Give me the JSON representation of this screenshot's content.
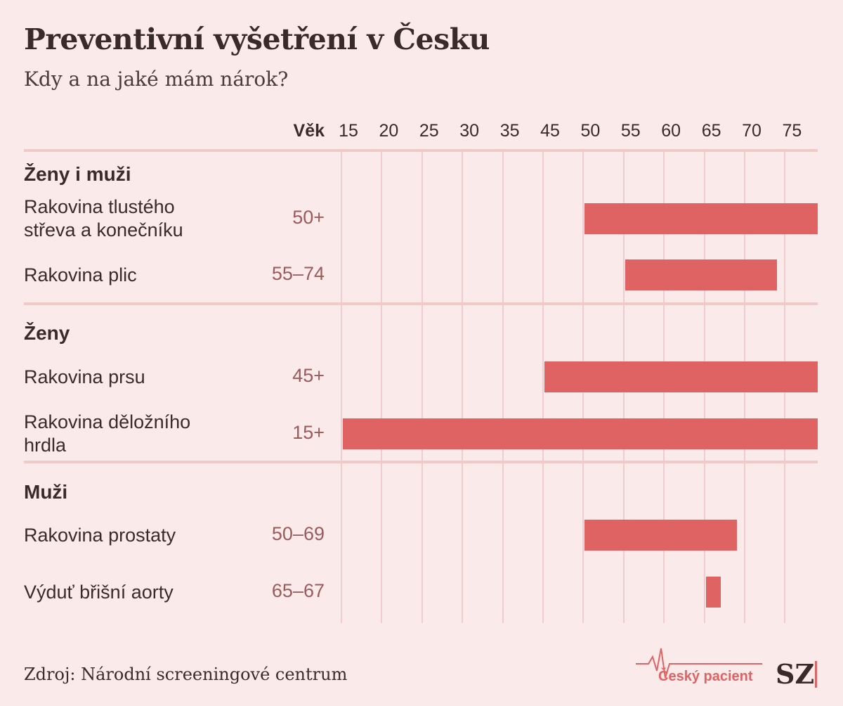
{
  "header": {
    "title": "Preventivní vyšetření v Česku",
    "subtitle": "Kdy a na jaké mám nárok?"
  },
  "chart_data": {
    "type": "bar",
    "orientation": "horizontal",
    "axis_title": "Věk",
    "ticks": [
      15,
      20,
      25,
      30,
      35,
      45,
      50,
      55,
      60,
      65,
      70,
      75
    ],
    "x_max": 79.5,
    "grid": true,
    "groups": [
      {
        "name": "Ženy i muži",
        "rows": [
          {
            "label_lines": [
              "Rakovina tlustého",
              "střeva a konečníku"
            ],
            "range_label": "50+",
            "start": 50,
            "end": null
          },
          {
            "label_lines": [
              "Rakovina plic"
            ],
            "range_label": "55–74",
            "start": 55,
            "end": 74
          }
        ]
      },
      {
        "name": "Ženy",
        "rows": [
          {
            "label_lines": [
              "Rakovina prsu"
            ],
            "range_label": "45+",
            "start": 45,
            "end": null
          },
          {
            "label_lines": [
              "Rakovina děložního",
              "hrdla"
            ],
            "range_label": "15+",
            "start": 15,
            "end": null
          }
        ]
      },
      {
        "name": "Muži",
        "rows": [
          {
            "label_lines": [
              "Rakovina prostaty"
            ],
            "range_label": "50–69",
            "start": 50,
            "end": 69
          },
          {
            "label_lines": [
              "Výduť břišní aorty"
            ],
            "range_label": "65–67",
            "start": 65,
            "end": 67
          }
        ]
      }
    ],
    "bar_color": "#e06363"
  },
  "footer": {
    "source": "Zdroj: Národní screeningové centrum",
    "brand": "Český pacient",
    "logo": "SZ"
  }
}
